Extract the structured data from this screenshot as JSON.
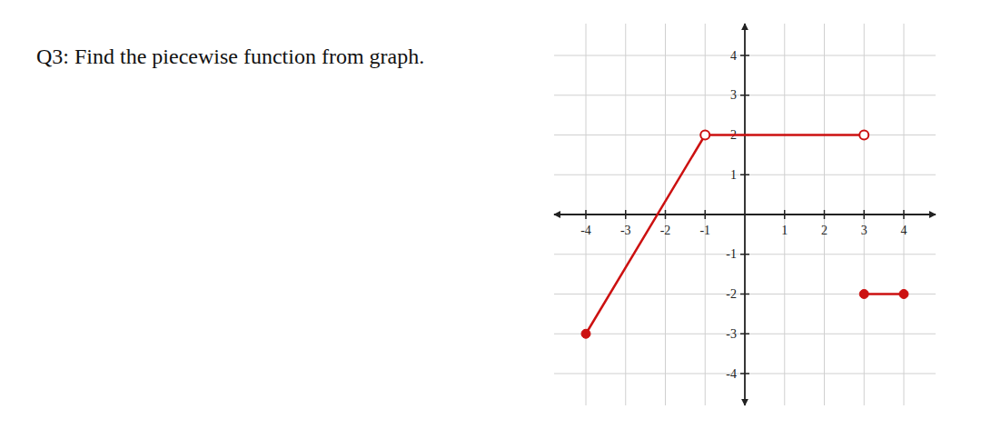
{
  "chart_data": {
    "type": "line",
    "title": "Q3: Find the piecewise function from graph.",
    "xlim": [
      -4.8,
      4.8
    ],
    "ylim": [
      -4.8,
      4.8
    ],
    "xticks": [
      -4,
      -3,
      -2,
      -1,
      1,
      2,
      3,
      4
    ],
    "yticks": [
      -4,
      -3,
      -2,
      -1,
      1,
      2,
      3,
      4
    ],
    "grid": true,
    "tick_labels": true,
    "series": [
      {
        "x": [
          -4,
          -1
        ],
        "values": [
          -3,
          2
        ],
        "marker": "filled",
        "color": "#cc1111"
      },
      {
        "x": [
          -1,
          3
        ],
        "values": [
          2,
          2
        ],
        "marker": "open",
        "color": "#cc1111"
      },
      {
        "x": [
          3,
          4
        ],
        "values": [
          -2,
          -2
        ],
        "marker": "filled",
        "color": "#cc1111"
      }
    ]
  }
}
